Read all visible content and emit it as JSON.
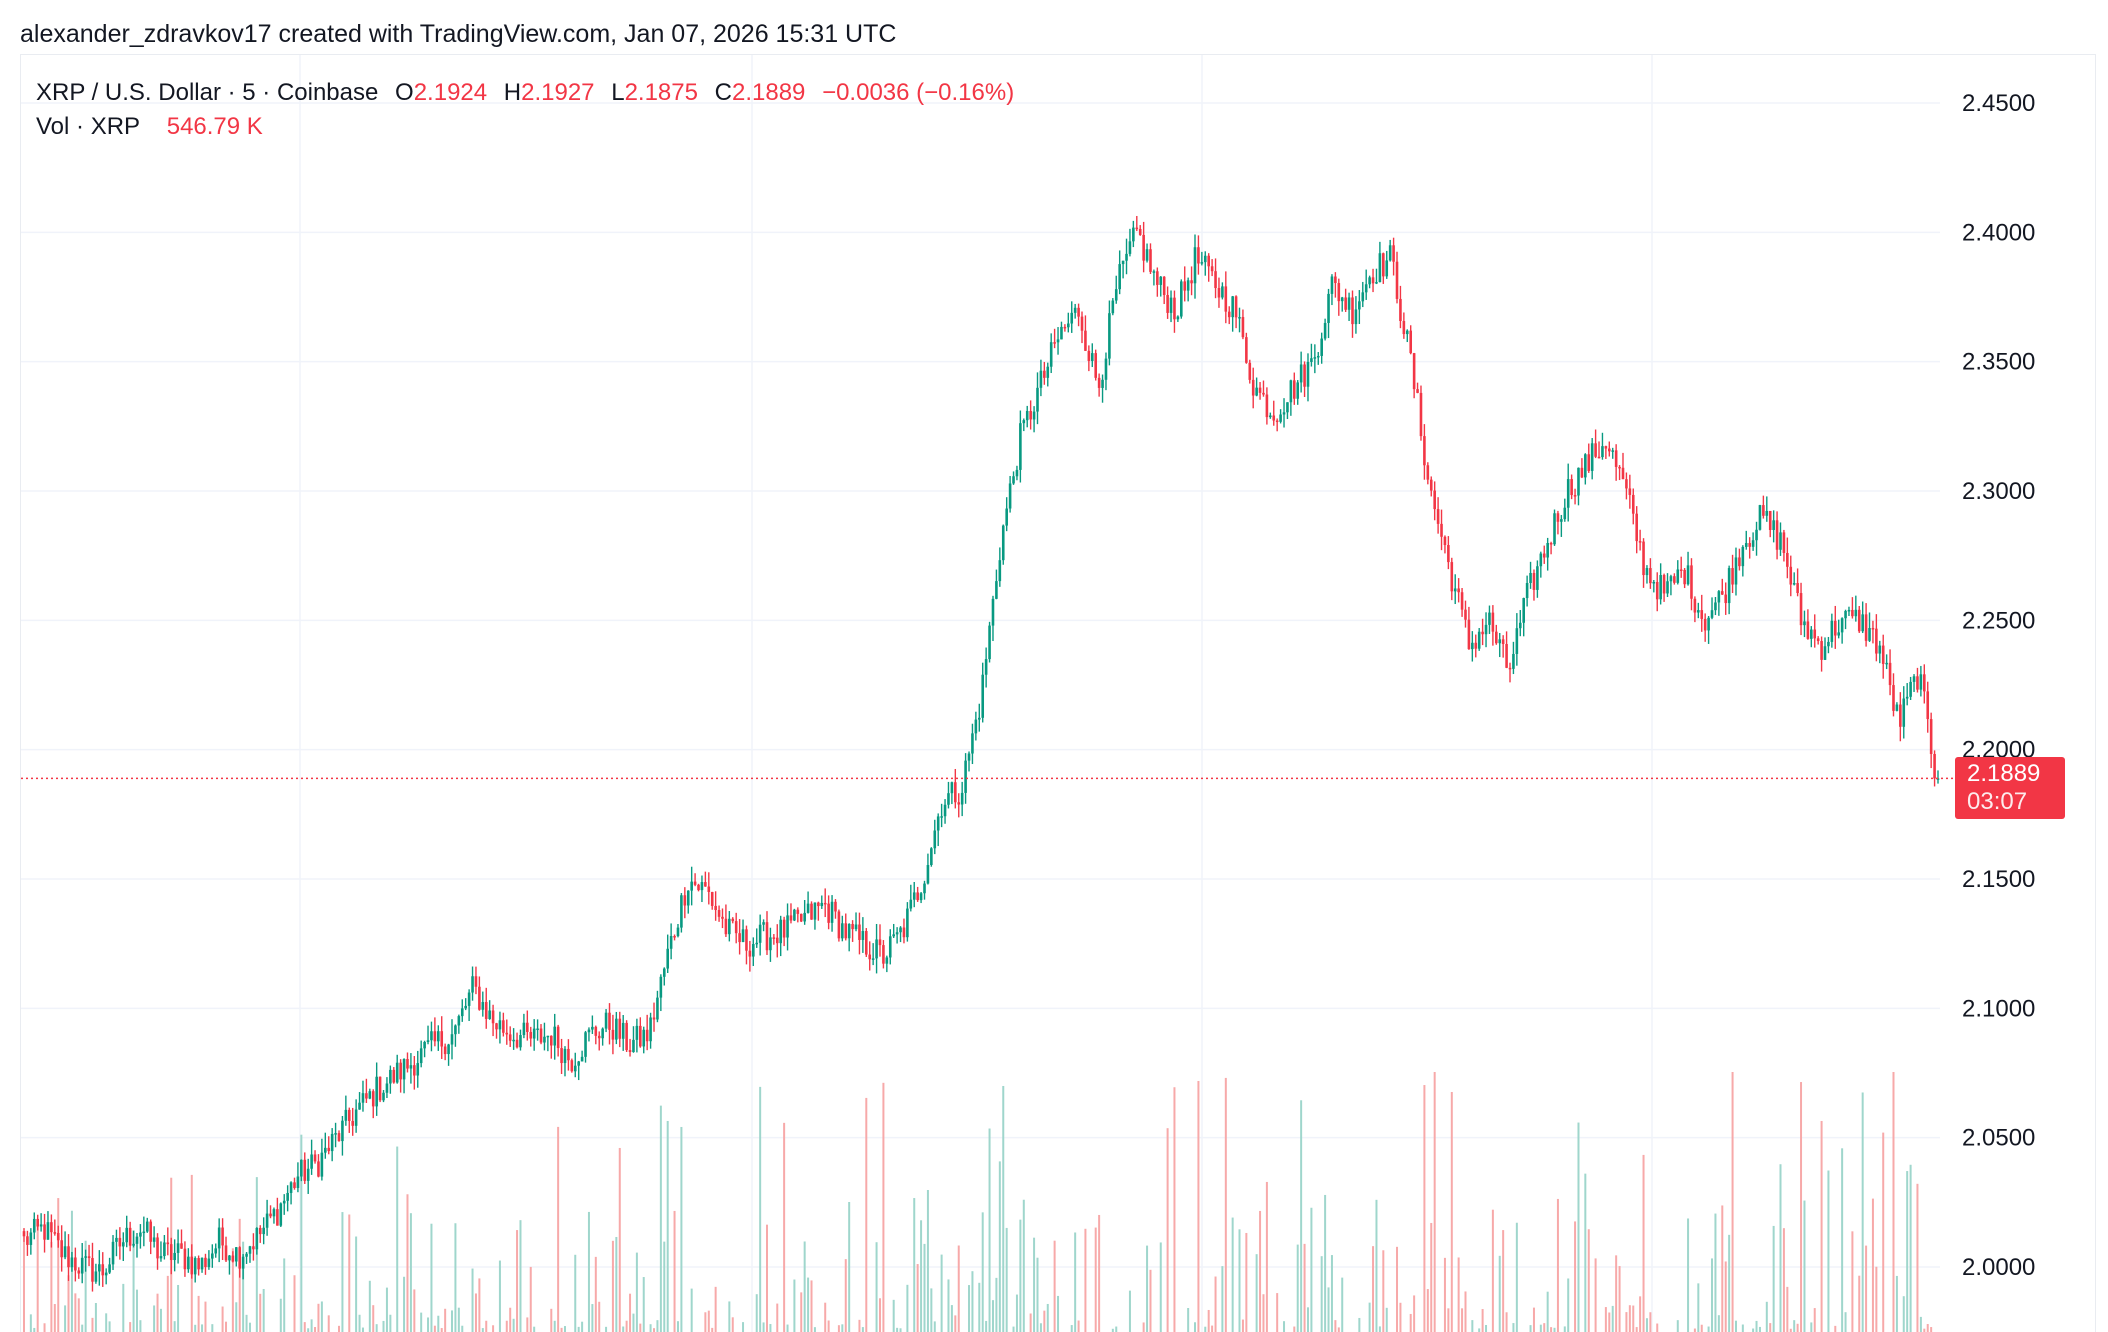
{
  "header": {
    "attribution": "alexander_zdravkov17 created with TradingView.com, Jan 07, 2026 15:31 UTC"
  },
  "legend": {
    "symbol": "XRP / U.S. Dollar · 5 · Coinbase",
    "o_label": "O",
    "o_value": "2.1924",
    "h_label": "H",
    "h_value": "2.1927",
    "l_label": "L",
    "l_value": "2.1875",
    "c_label": "C",
    "c_value": "2.1889",
    "change": "−0.0036 (−0.16%)",
    "vol_label": "Vol · XRP",
    "vol_value": "546.79 K"
  },
  "price_tag": {
    "price": "2.1889",
    "countdown": "03:07"
  },
  "colors": {
    "up": "#089981",
    "down": "#f23645",
    "up_volume": "#9fd6cc",
    "down_volume": "#f7a9a9",
    "grid": "#f0f3fa"
  },
  "chart_data": {
    "type": "candlestick",
    "interval": "5",
    "ylim": [
      1.97,
      2.465
    ],
    "y_ticks": [
      "2.4500",
      "2.4000",
      "2.3500",
      "2.3000",
      "2.2500",
      "2.2000",
      "2.1500",
      "2.1000",
      "2.0500",
      "2.0000"
    ],
    "last_price": 2.1889,
    "price_anchors": [
      2.01,
      2.015,
      2.005,
      2.0,
      1.998,
      2.01,
      2.015,
      2.005,
      2.005,
      2.0,
      2.01,
      2.005,
      2.012,
      2.022,
      2.035,
      2.04,
      2.05,
      2.06,
      2.068,
      2.074,
      2.08,
      2.086,
      2.09,
      2.108,
      2.095,
      2.09,
      2.088,
      2.09,
      2.08,
      2.09,
      2.094,
      2.086,
      2.09,
      2.122,
      2.15,
      2.145,
      2.13,
      2.125,
      2.128,
      2.13,
      2.135,
      2.14,
      2.13,
      2.125,
      2.12,
      2.13,
      2.15,
      2.18,
      2.185,
      2.22,
      2.28,
      2.32,
      2.34,
      2.36,
      2.37,
      2.34,
      2.38,
      2.4,
      2.38,
      2.37,
      2.39,
      2.38,
      2.37,
      2.34,
      2.33,
      2.34,
      2.35,
      2.38,
      2.37,
      2.385,
      2.39,
      2.35,
      2.3,
      2.27,
      2.24,
      2.25,
      2.23,
      2.26,
      2.28,
      2.3,
      2.31,
      2.32,
      2.3,
      2.27,
      2.26,
      2.27,
      2.25,
      2.26,
      2.28,
      2.29,
      2.28,
      2.25,
      2.24,
      2.25,
      2.25,
      2.24,
      2.21,
      2.23,
      2.185
    ],
    "volume_max": 1000
  }
}
